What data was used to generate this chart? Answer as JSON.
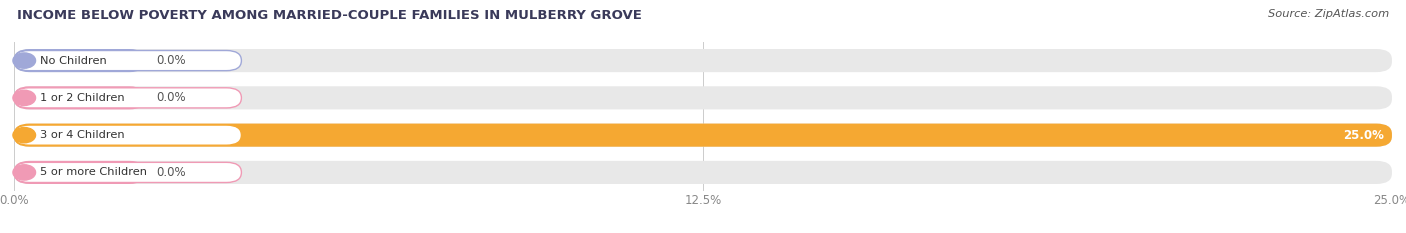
{
  "title": "INCOME BELOW POVERTY AMONG MARRIED-COUPLE FAMILIES IN MULBERRY GROVE",
  "source": "Source: ZipAtlas.com",
  "categories": [
    "No Children",
    "1 or 2 Children",
    "3 or 4 Children",
    "5 or more Children"
  ],
  "values": [
    0.0,
    0.0,
    25.0,
    0.0
  ],
  "bar_colors": [
    "#a0a8d8",
    "#f09ab5",
    "#f5a832",
    "#f09ab5"
  ],
  "xlim_max": 25.0,
  "xticks": [
    0.0,
    12.5,
    25.0
  ],
  "xtick_labels": [
    "0.0%",
    "12.5%",
    "25.0%"
  ],
  "background_color": "#ffffff",
  "bar_bg_color": "#e8e8e8",
  "figsize": [
    14.06,
    2.33
  ],
  "dpi": 100,
  "title_color": "#3a3a5a",
  "source_color": "#555555",
  "tick_color": "#888888",
  "value_label_color_dark": "#555555",
  "value_label_color_light": "#ffffff"
}
